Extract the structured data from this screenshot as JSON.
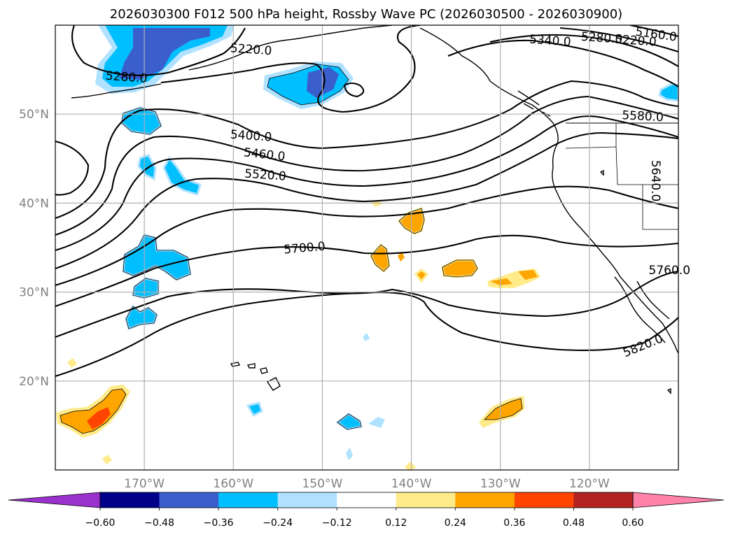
{
  "title": "2026030300 F012 500 hPa height, Rossby Wave PC (2026030500 - 2026030900)",
  "chart_data": {
    "type": "contour_map",
    "title": "2026030300 F012 500 hPa height, Rossby Wave PC (2026030500 - 2026030900)",
    "projection": "PlateCarree",
    "extent": {
      "lon": [
        -180,
        -110
      ],
      "lat": [
        10,
        60
      ]
    },
    "lon_ticks": [
      {
        "value": -170,
        "label": "170°W"
      },
      {
        "value": -160,
        "label": "160°W"
      },
      {
        "value": -150,
        "label": "150°W"
      },
      {
        "value": -140,
        "label": "140°W"
      },
      {
        "value": -130,
        "label": "130°W"
      },
      {
        "value": -120,
        "label": "120°W"
      }
    ],
    "lat_ticks": [
      {
        "value": 20,
        "label": "20°N"
      },
      {
        "value": 30,
        "label": "30°N"
      },
      {
        "value": 40,
        "label": "40°N"
      },
      {
        "value": 50,
        "label": "50°N"
      }
    ],
    "grid": true,
    "height_contour_labels": [
      {
        "text": "5160.0",
        "lon": -112.5,
        "lat": 59.0
      },
      {
        "text": "5220.0",
        "lon": -114.8,
        "lat": 58.3
      },
      {
        "text": "5280.0",
        "lon": -118.6,
        "lat": 58.6
      },
      {
        "text": "5340.0",
        "lon": -124.4,
        "lat": 58.3
      },
      {
        "text": "5220.0",
        "lon": -158.0,
        "lat": 57.3
      },
      {
        "text": "5280.0",
        "lon": -172.0,
        "lat": 54.2
      },
      {
        "text": "5400.0",
        "lon": -158.0,
        "lat": 47.6
      },
      {
        "text": "5460.0",
        "lon": -156.5,
        "lat": 45.5
      },
      {
        "text": "5520.0",
        "lon": -156.4,
        "lat": 43.2
      },
      {
        "text": "5580.0",
        "lon": -114.0,
        "lat": 49.8
      },
      {
        "text": "5640.0",
        "lon": -112.5,
        "lat": 42.5
      },
      {
        "text": "5700.0",
        "lon": -152.0,
        "lat": 35.0
      },
      {
        "text": "5760.0",
        "lon": -111.0,
        "lat": 32.5
      },
      {
        "text": "5820.0",
        "lon": -114.0,
        "lat": 24.0
      }
    ],
    "pc_anomaly_colorbar": {
      "levels": [
        -0.6,
        -0.48,
        -0.36,
        -0.24,
        -0.12,
        0.12,
        0.24,
        0.36,
        0.48,
        0.6
      ],
      "tick_labels": [
        "−0.60",
        "−0.48",
        "−0.36",
        "−0.24",
        "−0.12",
        "0.12",
        "0.24",
        "0.36",
        "0.48",
        "0.60"
      ],
      "colors": [
        "#9932cc",
        "#00008b",
        "#3a5fcd",
        "#00bfff",
        "#b0e2ff",
        "#ffffff",
        "#ffeb8a",
        "#ffa500",
        "#ff4500",
        "#b22222",
        "#ff82ab"
      ],
      "extend": "both"
    },
    "negative_anomaly_areas": [
      {
        "lon": -166,
        "lat": 57,
        "min": -0.48
      },
      {
        "lon": -147,
        "lat": 54.5,
        "min": -0.48
      },
      {
        "lon": -170,
        "lat": 50,
        "min": -0.36
      },
      {
        "lon": -167,
        "lat": 42.5,
        "min": -0.36
      },
      {
        "lon": -170,
        "lat": 33,
        "min": -0.36
      },
      {
        "lon": -171,
        "lat": 27,
        "min": -0.36
      },
      {
        "lon": -146,
        "lat": 15,
        "min": -0.36
      },
      {
        "lon": -113,
        "lat": 52,
        "min": -0.36
      }
    ],
    "positive_anomaly_areas": [
      {
        "lon": -175,
        "lat": 15.5,
        "min": 0.36
      },
      {
        "lon": -140,
        "lat": 37.5,
        "min": 0.24
      },
      {
        "lon": -143,
        "lat": 34,
        "min": 0.24
      },
      {
        "lon": -133,
        "lat": 32,
        "min": 0.24
      },
      {
        "lon": -130,
        "lat": 31,
        "min": 0.24
      },
      {
        "lon": -129.5,
        "lat": 16.5,
        "min": 0.24
      }
    ]
  }
}
